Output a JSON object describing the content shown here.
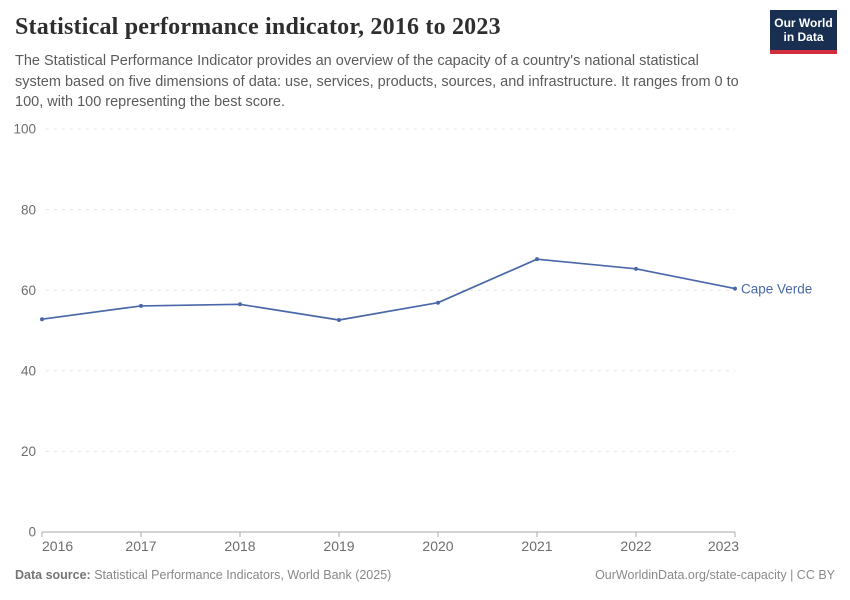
{
  "header": {
    "title": "Statistical performance indicator, 2016 to 2023",
    "subtitle": "The Statistical Performance Indicator provides an overview of the capacity of a country's national statistical system based on five dimensions of data: use, services, products, sources, and infrastructure. It ranges from 0 to 100, with 100 representing the best score.",
    "logo": {
      "line1": "Our World",
      "line2": "in Data"
    }
  },
  "chart_data": {
    "type": "line",
    "title": "Statistical performance indicator, 2016 to 2023",
    "x": [
      2016,
      2017,
      2018,
      2019,
      2020,
      2021,
      2022,
      2023
    ],
    "x_tick_labels": [
      "2016",
      "2017",
      "2018",
      "2019",
      "2020",
      "2021",
      "2022",
      "2023"
    ],
    "y_ticks": [
      0,
      20,
      40,
      60,
      80,
      100
    ],
    "ylim": [
      0,
      100
    ],
    "grid": "horizontal-dashed",
    "legend_position": "end-of-line-label",
    "series": [
      {
        "name": "Cape Verde",
        "color": "#4a68a8",
        "values": [
          52.8,
          56.1,
          56.5,
          52.6,
          56.9,
          67.7,
          65.3,
          60.4
        ]
      }
    ]
  },
  "footer": {
    "source_label": "Data source:",
    "source_text": "Statistical Performance Indicators, World Bank (2025)",
    "credit": "OurWorldinData.org/state-capacity | CC BY"
  },
  "colors": {
    "series_blue": "#4a68a8",
    "logo_navy": "#182f52",
    "logo_red": "#d02e3e",
    "gridline": "#e2e2e2",
    "axis_line": "#a8a8a8",
    "axis_text": "#6e6e6e",
    "title_text": "#2e2e2e",
    "subtitle_text": "#5b5b5b",
    "footer_text": "#888888"
  }
}
